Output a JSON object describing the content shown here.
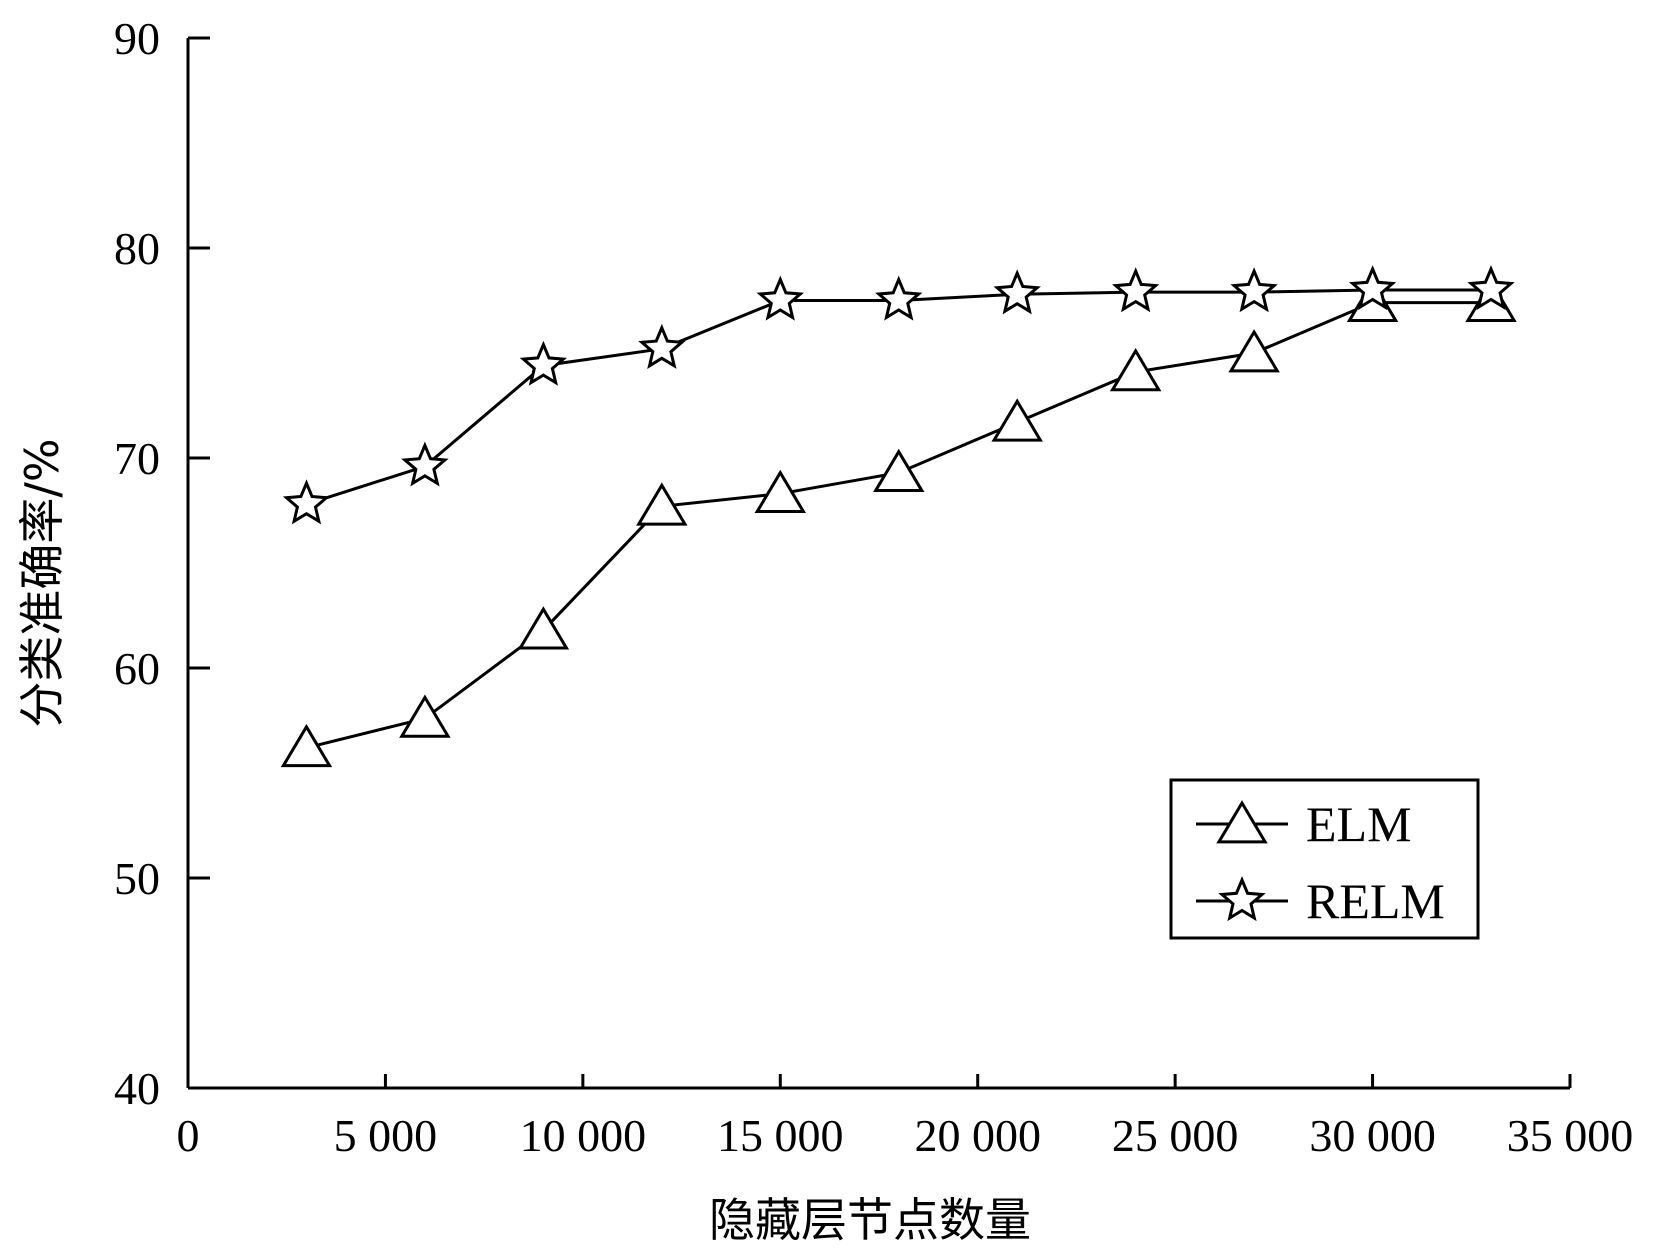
{
  "chart_data": {
    "type": "line",
    "title": "",
    "xlabel": "隐藏层节点数量",
    "ylabel": "分类准确率/%",
    "xlim": [
      0,
      35000
    ],
    "ylim": [
      40,
      90
    ],
    "x_ticks": [
      0,
      5000,
      10000,
      15000,
      20000,
      25000,
      30000,
      35000
    ],
    "x_tick_labels": [
      "0",
      "5 000",
      "10 000",
      "15 000",
      "20 000",
      "25 000",
      "30 000",
      "35 000"
    ],
    "y_ticks": [
      40,
      50,
      60,
      70,
      80,
      90
    ],
    "y_tick_labels": [
      "40",
      "50",
      "60",
      "70",
      "80",
      "90"
    ],
    "grid": false,
    "legend_position": "bottom-right",
    "x": [
      3000,
      6000,
      9000,
      12000,
      15000,
      18000,
      21000,
      24000,
      27000,
      30000,
      33000
    ],
    "series": [
      {
        "name": "ELM",
        "marker": "triangle",
        "values": [
          56.2,
          57.6,
          61.8,
          67.7,
          68.3,
          69.3,
          71.7,
          74.1,
          75.0,
          77.4,
          77.4
        ]
      },
      {
        "name": "RELM",
        "marker": "star",
        "values": [
          67.8,
          69.6,
          74.4,
          75.2,
          77.5,
          77.5,
          77.8,
          77.9,
          77.9,
          78.0,
          78.0
        ]
      }
    ]
  }
}
